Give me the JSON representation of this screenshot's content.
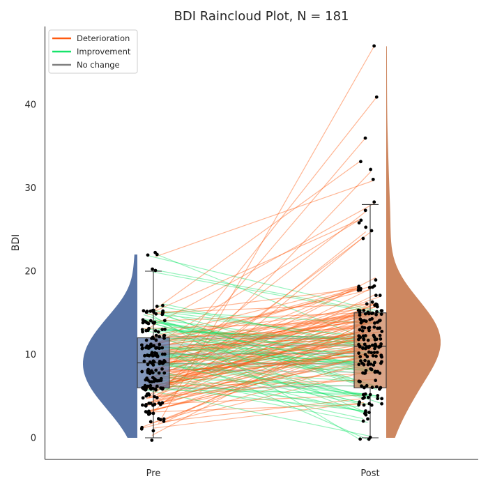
{
  "chart_data": {
    "type": "raincloud",
    "title": "BDI Raincloud Plot, N = 181",
    "xlabel": "",
    "ylabel": "BDI",
    "categories": [
      "Pre",
      "Post"
    ],
    "ylim": [
      -2.6,
      49.5
    ],
    "yticks": [
      0,
      10,
      20,
      30,
      40
    ],
    "legend": {
      "placement": "top-left",
      "entries": [
        {
          "label": "Deterioration",
          "color": "#ff5a10"
        },
        {
          "label": "Improvement",
          "color": "#16e46a"
        },
        {
          "label": "No change",
          "color": "#808080"
        }
      ]
    },
    "colors": {
      "pre": "#5874a6",
      "post": "#cd8760",
      "deterioration": "#ff5a10",
      "improvement": "#16e46a",
      "no_change": "#808080",
      "points": "#000000"
    },
    "boxplots": [
      {
        "group": "Pre",
        "whisker_low": 0,
        "q1": 6,
        "median": 9,
        "q3": 12,
        "whisker_high": 20,
        "outliers": [
          22,
          22,
          22
        ]
      },
      {
        "group": "Post",
        "whisker_low": 0,
        "q1": 6,
        "median": 11,
        "q3": 15,
        "whisker_high": 28,
        "outliers": [
          31,
          32,
          33,
          36,
          41,
          47
        ]
      }
    ],
    "n": 181,
    "pre_distribution": {
      "min": 0,
      "max": 22,
      "mode": 9,
      "spread": 4
    },
    "post_distribution": {
      "min": 0,
      "max": 47,
      "mode": 11,
      "spread": 5
    }
  }
}
